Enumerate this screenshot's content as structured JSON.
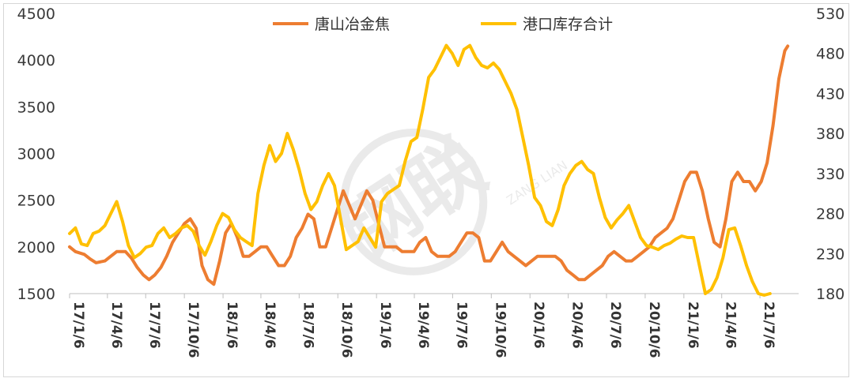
{
  "chart_data": {
    "type": "line",
    "title": "",
    "xlabel": "",
    "ylabel": "",
    "legend_position": "top-center",
    "grid": false,
    "x_range": [
      "2017-01-06",
      "2021-10-06"
    ],
    "x_tick_labels": [
      "17/1/6",
      "17/4/6",
      "17/7/6",
      "17/10/6",
      "18/1/6",
      "18/4/6",
      "18/7/6",
      "18/10/6",
      "19/1/6",
      "19/4/6",
      "19/7/6",
      "19/10/6",
      "20/1/6",
      "20/4/6",
      "20/7/6",
      "20/10/6",
      "21/1/6",
      "21/4/6",
      "21/7/6"
    ],
    "y_left": {
      "range": [
        1500,
        4500
      ],
      "ticks": [
        "1500",
        "2000",
        "2500",
        "3000",
        "3500",
        "4000",
        "4500"
      ]
    },
    "y_right": {
      "range": [
        180,
        530
      ],
      "ticks": [
        "180",
        "230",
        "280",
        "330",
        "380",
        "430",
        "480",
        "530"
      ]
    },
    "series": [
      {
        "name": "唐山冶金焦",
        "axis": "left",
        "color": "#ED7D31",
        "points": [
          [
            "2017-01-06",
            2000
          ],
          [
            "2017-01-20",
            1950
          ],
          [
            "2017-02-10",
            1920
          ],
          [
            "2017-02-24",
            1870
          ],
          [
            "2017-03-10",
            1830
          ],
          [
            "2017-03-31",
            1850
          ],
          [
            "2017-04-14",
            1900
          ],
          [
            "2017-04-28",
            1950
          ],
          [
            "2017-05-19",
            1950
          ],
          [
            "2017-06-02",
            1880
          ],
          [
            "2017-06-16",
            1780
          ],
          [
            "2017-06-30",
            1700
          ],
          [
            "2017-07-14",
            1650
          ],
          [
            "2017-07-28",
            1700
          ],
          [
            "2017-08-11",
            1780
          ],
          [
            "2017-08-25",
            1900
          ],
          [
            "2017-09-08",
            2050
          ],
          [
            "2017-09-22",
            2150
          ],
          [
            "2017-10-06",
            2250
          ],
          [
            "2017-10-20",
            2300
          ],
          [
            "2017-11-03",
            2200
          ],
          [
            "2017-11-17",
            1800
          ],
          [
            "2017-12-01",
            1650
          ],
          [
            "2017-12-15",
            1600
          ],
          [
            "2017-12-29",
            1850
          ],
          [
            "2018-01-12",
            2150
          ],
          [
            "2018-01-26",
            2250
          ],
          [
            "2018-02-09",
            2100
          ],
          [
            "2018-02-23",
            1900
          ],
          [
            "2018-03-09",
            1900
          ],
          [
            "2018-03-23",
            1950
          ],
          [
            "2018-04-06",
            2000
          ],
          [
            "2018-04-20",
            2000
          ],
          [
            "2018-05-04",
            1900
          ],
          [
            "2018-05-18",
            1800
          ],
          [
            "2018-06-01",
            1800
          ],
          [
            "2018-06-15",
            1900
          ],
          [
            "2018-06-29",
            2100
          ],
          [
            "2018-07-13",
            2200
          ],
          [
            "2018-07-27",
            2350
          ],
          [
            "2018-08-10",
            2300
          ],
          [
            "2018-08-24",
            2000
          ],
          [
            "2018-09-07",
            2000
          ],
          [
            "2018-09-21",
            2200
          ],
          [
            "2018-10-05",
            2400
          ],
          [
            "2018-10-19",
            2600
          ],
          [
            "2018-11-02",
            2450
          ],
          [
            "2018-11-16",
            2300
          ],
          [
            "2018-11-30",
            2450
          ],
          [
            "2018-12-14",
            2600
          ],
          [
            "2018-12-28",
            2500
          ],
          [
            "2019-01-11",
            2250
          ],
          [
            "2019-01-25",
            2000
          ],
          [
            "2019-02-08",
            2000
          ],
          [
            "2019-02-22",
            2000
          ],
          [
            "2019-03-08",
            1950
          ],
          [
            "2019-03-22",
            1950
          ],
          [
            "2019-04-05",
            1950
          ],
          [
            "2019-04-19",
            2050
          ],
          [
            "2019-05-03",
            2100
          ],
          [
            "2019-05-17",
            1950
          ],
          [
            "2019-05-31",
            1900
          ],
          [
            "2019-06-14",
            1900
          ],
          [
            "2019-06-28",
            1900
          ],
          [
            "2019-07-12",
            1950
          ],
          [
            "2019-07-26",
            2050
          ],
          [
            "2019-08-09",
            2150
          ],
          [
            "2019-08-23",
            2150
          ],
          [
            "2019-09-06",
            2100
          ],
          [
            "2019-09-20",
            1850
          ],
          [
            "2019-10-04",
            1850
          ],
          [
            "2019-10-18",
            1950
          ],
          [
            "2019-11-01",
            2050
          ],
          [
            "2019-11-15",
            1950
          ],
          [
            "2019-11-29",
            1900
          ],
          [
            "2019-12-13",
            1850
          ],
          [
            "2019-12-27",
            1800
          ],
          [
            "2020-01-10",
            1850
          ],
          [
            "2020-01-24",
            1900
          ],
          [
            "2020-02-07",
            1900
          ],
          [
            "2020-02-21",
            1900
          ],
          [
            "2020-03-06",
            1900
          ],
          [
            "2020-03-20",
            1850
          ],
          [
            "2020-04-03",
            1750
          ],
          [
            "2020-04-17",
            1700
          ],
          [
            "2020-05-01",
            1650
          ],
          [
            "2020-05-15",
            1650
          ],
          [
            "2020-05-29",
            1700
          ],
          [
            "2020-06-12",
            1750
          ],
          [
            "2020-06-26",
            1800
          ],
          [
            "2020-07-10",
            1900
          ],
          [
            "2020-07-24",
            1950
          ],
          [
            "2020-08-07",
            1900
          ],
          [
            "2020-08-21",
            1850
          ],
          [
            "2020-09-04",
            1850
          ],
          [
            "2020-09-18",
            1900
          ],
          [
            "2020-10-02",
            1950
          ],
          [
            "2020-10-16",
            2000
          ],
          [
            "2020-10-30",
            2100
          ],
          [
            "2020-11-13",
            2150
          ],
          [
            "2020-11-27",
            2200
          ],
          [
            "2020-12-11",
            2300
          ],
          [
            "2020-12-25",
            2500
          ],
          [
            "2021-01-08",
            2700
          ],
          [
            "2021-01-22",
            2800
          ],
          [
            "2021-02-05",
            2800
          ],
          [
            "2021-02-19",
            2600
          ],
          [
            "2021-03-05",
            2300
          ],
          [
            "2021-03-19",
            2050
          ],
          [
            "2021-04-02",
            2000
          ],
          [
            "2021-04-16",
            2300
          ],
          [
            "2021-04-30",
            2700
          ],
          [
            "2021-05-14",
            2800
          ],
          [
            "2021-05-28",
            2700
          ],
          [
            "2021-06-11",
            2700
          ],
          [
            "2021-06-25",
            2600
          ],
          [
            "2021-07-09",
            2700
          ],
          [
            "2021-07-23",
            2900
          ],
          [
            "2021-08-06",
            3300
          ],
          [
            "2021-08-20",
            3800
          ],
          [
            "2021-09-03",
            4100
          ],
          [
            "2021-09-10",
            4150
          ]
        ]
      },
      {
        "name": "港口库存合计",
        "axis": "right",
        "color": "#FFC000",
        "points": [
          [
            "2017-01-06",
            255
          ],
          [
            "2017-01-20",
            262
          ],
          [
            "2017-02-03",
            242
          ],
          [
            "2017-02-17",
            240
          ],
          [
            "2017-03-03",
            255
          ],
          [
            "2017-03-17",
            258
          ],
          [
            "2017-03-31",
            265
          ],
          [
            "2017-04-14",
            280
          ],
          [
            "2017-04-28",
            295
          ],
          [
            "2017-05-12",
            270
          ],
          [
            "2017-05-26",
            240
          ],
          [
            "2017-06-09",
            225
          ],
          [
            "2017-06-23",
            230
          ],
          [
            "2017-07-07",
            238
          ],
          [
            "2017-07-21",
            240
          ],
          [
            "2017-08-04",
            255
          ],
          [
            "2017-08-18",
            262
          ],
          [
            "2017-09-01",
            250
          ],
          [
            "2017-09-15",
            255
          ],
          [
            "2017-09-29",
            262
          ],
          [
            "2017-10-13",
            265
          ],
          [
            "2017-10-27",
            258
          ],
          [
            "2017-11-10",
            240
          ],
          [
            "2017-11-24",
            228
          ],
          [
            "2017-12-08",
            245
          ],
          [
            "2017-12-22",
            265
          ],
          [
            "2018-01-05",
            280
          ],
          [
            "2018-01-19",
            275
          ],
          [
            "2018-02-02",
            260
          ],
          [
            "2018-02-16",
            250
          ],
          [
            "2018-03-02",
            245
          ],
          [
            "2018-03-16",
            240
          ],
          [
            "2018-03-30",
            305
          ],
          [
            "2018-04-13",
            340
          ],
          [
            "2018-04-27",
            365
          ],
          [
            "2018-05-11",
            345
          ],
          [
            "2018-05-25",
            355
          ],
          [
            "2018-06-08",
            380
          ],
          [
            "2018-06-22",
            360
          ],
          [
            "2018-07-06",
            335
          ],
          [
            "2018-07-20",
            305
          ],
          [
            "2018-08-03",
            285
          ],
          [
            "2018-08-17",
            295
          ],
          [
            "2018-08-31",
            315
          ],
          [
            "2018-09-14",
            330
          ],
          [
            "2018-09-28",
            315
          ],
          [
            "2018-10-12",
            275
          ],
          [
            "2018-10-26",
            235
          ],
          [
            "2018-11-09",
            240
          ],
          [
            "2018-11-23",
            245
          ],
          [
            "2018-12-07",
            262
          ],
          [
            "2018-12-21",
            250
          ],
          [
            "2019-01-04",
            238
          ],
          [
            "2019-01-18",
            295
          ],
          [
            "2019-02-01",
            305
          ],
          [
            "2019-02-15",
            310
          ],
          [
            "2019-03-01",
            315
          ],
          [
            "2019-03-15",
            345
          ],
          [
            "2019-03-29",
            370
          ],
          [
            "2019-04-12",
            375
          ],
          [
            "2019-04-26",
            410
          ],
          [
            "2019-05-10",
            450
          ],
          [
            "2019-05-24",
            460
          ],
          [
            "2019-06-07",
            475
          ],
          [
            "2019-06-21",
            490
          ],
          [
            "2019-07-05",
            480
          ],
          [
            "2019-07-19",
            465
          ],
          [
            "2019-08-02",
            485
          ],
          [
            "2019-08-16",
            490
          ],
          [
            "2019-08-30",
            475
          ],
          [
            "2019-09-13",
            465
          ],
          [
            "2019-09-27",
            462
          ],
          [
            "2019-10-11",
            468
          ],
          [
            "2019-10-25",
            460
          ],
          [
            "2019-11-08",
            445
          ],
          [
            "2019-11-22",
            430
          ],
          [
            "2019-12-06",
            410
          ],
          [
            "2019-12-20",
            375
          ],
          [
            "2020-01-03",
            340
          ],
          [
            "2020-01-17",
            300
          ],
          [
            "2020-01-31",
            290
          ],
          [
            "2020-02-14",
            270
          ],
          [
            "2020-02-28",
            265
          ],
          [
            "2020-03-13",
            285
          ],
          [
            "2020-03-27",
            315
          ],
          [
            "2020-04-10",
            330
          ],
          [
            "2020-04-24",
            340
          ],
          [
            "2020-05-08",
            345
          ],
          [
            "2020-05-22",
            335
          ],
          [
            "2020-06-05",
            330
          ],
          [
            "2020-06-19",
            300
          ],
          [
            "2020-07-03",
            275
          ],
          [
            "2020-07-17",
            262
          ],
          [
            "2020-07-31",
            272
          ],
          [
            "2020-08-14",
            280
          ],
          [
            "2020-08-28",
            290
          ],
          [
            "2020-09-11",
            270
          ],
          [
            "2020-09-25",
            250
          ],
          [
            "2020-10-09",
            240
          ],
          [
            "2020-10-23",
            238
          ],
          [
            "2020-11-06",
            235
          ],
          [
            "2020-11-20",
            240
          ],
          [
            "2020-12-04",
            243
          ],
          [
            "2020-12-18",
            248
          ],
          [
            "2021-01-01",
            252
          ],
          [
            "2021-01-15",
            250
          ],
          [
            "2021-01-29",
            250
          ],
          [
            "2021-02-12",
            215
          ],
          [
            "2021-02-26",
            180
          ],
          [
            "2021-03-12",
            185
          ],
          [
            "2021-03-26",
            200
          ],
          [
            "2021-04-09",
            225
          ],
          [
            "2021-04-23",
            260
          ],
          [
            "2021-05-07",
            262
          ],
          [
            "2021-05-21",
            240
          ],
          [
            "2021-06-04",
            215
          ],
          [
            "2021-06-18",
            195
          ],
          [
            "2021-07-02",
            180
          ],
          [
            "2021-07-16",
            178
          ],
          [
            "2021-07-30",
            180
          ]
        ]
      }
    ]
  },
  "watermark": {
    "text": "钢联",
    "subtext": "ZANG LIAN"
  }
}
